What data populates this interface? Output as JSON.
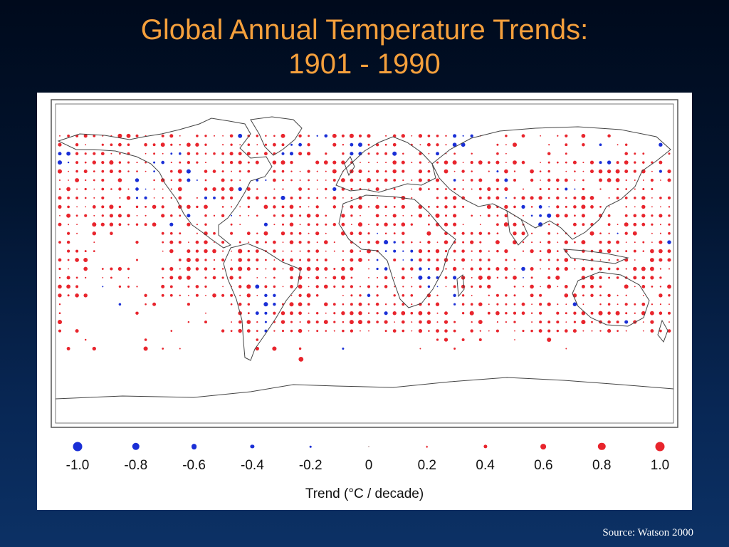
{
  "slide": {
    "title_line1": "Global Annual Temperature Trends:",
    "title_line2": "1901 - 1990",
    "source": "Source: Watson 2000"
  },
  "legend": {
    "title": "Trend (°C / decade)",
    "items": [
      {
        "label": "-1.0",
        "value": -1.0,
        "color": "#1a2fd6"
      },
      {
        "label": "-0.8",
        "value": -0.8,
        "color": "#1a2fd6"
      },
      {
        "label": "-0.6",
        "value": -0.6,
        "color": "#1a2fd6"
      },
      {
        "label": "-0.4",
        "value": -0.4,
        "color": "#1a2fd6"
      },
      {
        "label": "-0.2",
        "value": -0.2,
        "color": "#1a2fd6"
      },
      {
        "label": "0",
        "value": 0,
        "color": "#c8b0b0"
      },
      {
        "label": "0.2",
        "value": 0.2,
        "color": "#e8242c"
      },
      {
        "label": "0.4",
        "value": 0.4,
        "color": "#e8242c"
      },
      {
        "label": "0.6",
        "value": 0.6,
        "color": "#e8242c"
      },
      {
        "label": "0.8",
        "value": 0.8,
        "color": "#e8242c"
      },
      {
        "label": "1.0",
        "value": 1.0,
        "color": "#e8242c"
      }
    ]
  },
  "map": {
    "colors": {
      "warming": "#e8242c",
      "cooling": "#1a2fd6",
      "coast": "#444444",
      "frame": "#555555"
    },
    "cooling_regions_lonlat": [
      [
        -72,
        72
      ],
      [
        -40,
        66
      ],
      [
        -45,
        62
      ],
      [
        -25,
        70
      ],
      [
        -10,
        78
      ],
      [
        10,
        78
      ],
      [
        -5,
        64
      ],
      [
        -110,
        62
      ],
      [
        -120,
        55
      ],
      [
        -100,
        50
      ],
      [
        -90,
        38
      ],
      [
        -60,
        46
      ],
      [
        -175,
        60
      ],
      [
        -55,
        -20
      ],
      [
        -60,
        -28
      ],
      [
        -58,
        -35
      ],
      [
        -62,
        -12
      ],
      [
        -150,
        -15
      ],
      [
        -140,
        -22
      ],
      [
        120,
        42
      ],
      [
        100,
        25
      ],
      [
        96,
        22
      ],
      [
        10,
        0
      ],
      [
        25,
        4
      ],
      [
        40,
        -10
      ],
      [
        50,
        -20
      ],
      [
        35,
        -5
      ],
      [
        55,
        70
      ],
      [
        60,
        72
      ],
      [
        22,
        6
      ],
      [
        15,
        10
      ],
      [
        140,
        60
      ],
      [
        105,
        30
      ],
      [
        -130,
        40
      ]
    ]
  }
}
